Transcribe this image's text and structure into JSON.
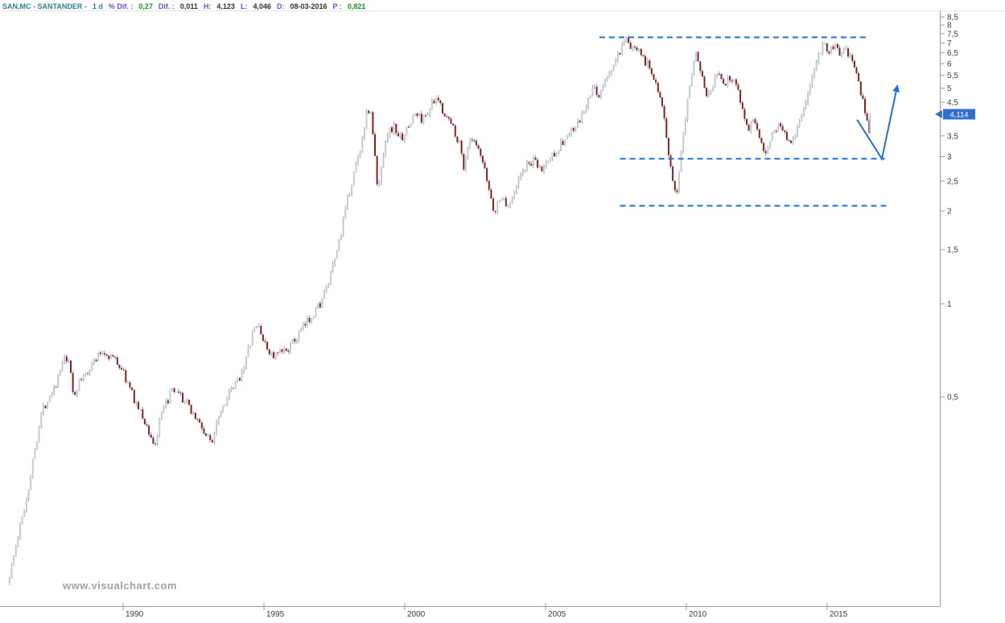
{
  "watermark": {
    "text": "www.visualchart.com"
  },
  "header": {
    "segments": [
      {
        "text": "SAN,MC - SANTANDER -",
        "color": "#2f7f96"
      },
      {
        "text": "1 d",
        "color": "#2f7f96"
      },
      {
        "text": "% Dif. :",
        "color": "#5a5ad6"
      },
      {
        "text": "0,27",
        "color": "#169616"
      },
      {
        "text": "Dif. :",
        "color": "#5a5ad6"
      },
      {
        "text": "0,011",
        "color": "#303030"
      },
      {
        "text": "H:",
        "color": "#5a5ad6"
      },
      {
        "text": "4,123",
        "color": "#303030"
      },
      {
        "text": "L:",
        "color": "#5a5ad6"
      },
      {
        "text": "4,046",
        "color": "#303030"
      },
      {
        "text": "D:",
        "color": "#5a5ad6"
      },
      {
        "text": "08-03-2016",
        "color": "#303030"
      },
      {
        "text": "P :",
        "color": "#5a5ad6"
      },
      {
        "text": "0,821",
        "color": "#169616"
      }
    ]
  },
  "chart_data": {
    "type": "candlestick",
    "instrument": "SAN,MC - SANTANDER",
    "timeframe": "1 d",
    "date_of_last_bar": "08-03-2016",
    "last_price": 4.114,
    "last_price_label": "4,114",
    "quote": {
      "pct_change": "0,27",
      "change": "0,011",
      "high": "4,123",
      "low": "4,046",
      "p": "0,821"
    },
    "y_axis": {
      "scale": "log",
      "ticks": [
        8.5,
        8,
        7.5,
        7,
        6.5,
        6,
        5.5,
        5,
        4.5,
        3.5,
        3,
        2.5,
        2,
        1.5,
        1,
        0.5
      ],
      "label_format": "comma-decimal"
    },
    "x_axis": {
      "ticks": [
        1990,
        1995,
        2000,
        2005,
        2010,
        2015
      ],
      "range_years": [
        1985.5,
        2018.6
      ]
    },
    "up_color": "#c2cccc",
    "down_color": "#8a1f1f",
    "wick_color": "#90a0a0",
    "annotation_color": "#1f6fe0",
    "badge_color": "#2e6fd0",
    "levels": [
      {
        "name": "resistance-line",
        "price": 7.3,
        "from_year": 2006.57,
        "to_year": 2016.14
      },
      {
        "name": "support-line-upper",
        "price": 2.95,
        "from_year": 2007.3,
        "to_year": 2016.7
      },
      {
        "name": "support-line-lower",
        "price": 2.08,
        "from_year": 2007.3,
        "to_year": 2016.85
      }
    ],
    "projection_arrow": {
      "points": [
        [
          2015.72,
          3.95
        ],
        [
          2016.6,
          2.95
        ],
        [
          2017.15,
          5.1
        ]
      ]
    },
    "series_anchors": [
      [
        1985.55,
        0.125
      ],
      [
        1985.8,
        0.155
      ],
      [
        1986.0,
        0.19
      ],
      [
        1986.25,
        0.24
      ],
      [
        1986.5,
        0.33
      ],
      [
        1986.75,
        0.44
      ],
      [
        1987.0,
        0.5
      ],
      [
        1987.3,
        0.56
      ],
      [
        1987.6,
        0.67
      ],
      [
        1987.78,
        0.62
      ],
      [
        1987.9,
        0.5
      ],
      [
        1988.1,
        0.555
      ],
      [
        1988.5,
        0.63
      ],
      [
        1988.9,
        0.7
      ],
      [
        1989.3,
        0.67
      ],
      [
        1989.6,
        0.62
      ],
      [
        1989.9,
        0.53
      ],
      [
        1990.2,
        0.46
      ],
      [
        1990.5,
        0.4
      ],
      [
        1990.78,
        0.345
      ],
      [
        1991.0,
        0.43
      ],
      [
        1991.35,
        0.52
      ],
      [
        1991.7,
        0.5
      ],
      [
        1992.0,
        0.465
      ],
      [
        1992.3,
        0.42
      ],
      [
        1992.6,
        0.375
      ],
      [
        1992.8,
        0.355
      ],
      [
        1993.0,
        0.43
      ],
      [
        1993.3,
        0.49
      ],
      [
        1993.7,
        0.555
      ],
      [
        1994.0,
        0.65
      ],
      [
        1994.25,
        0.8
      ],
      [
        1994.45,
        0.86
      ],
      [
        1994.7,
        0.73
      ],
      [
        1995.0,
        0.675
      ],
      [
        1995.35,
        0.7
      ],
      [
        1995.7,
        0.75
      ],
      [
        1996.0,
        0.82
      ],
      [
        1996.35,
        0.92
      ],
      [
        1996.7,
        1.02
      ],
      [
        1997.0,
        1.2
      ],
      [
        1997.3,
        1.55
      ],
      [
        1997.6,
        2.1
      ],
      [
        1997.85,
        2.65
      ],
      [
        1998.05,
        3.1
      ],
      [
        1998.3,
        4.1
      ],
      [
        1998.42,
        4.35
      ],
      [
        1998.55,
        3.4
      ],
      [
        1998.7,
        2.25
      ],
      [
        1998.85,
        2.9
      ],
      [
        1999.0,
        3.55
      ],
      [
        1999.25,
        3.75
      ],
      [
        1999.5,
        3.45
      ],
      [
        1999.75,
        3.65
      ],
      [
        2000.0,
        4.15
      ],
      [
        2000.3,
        3.95
      ],
      [
        2000.6,
        4.4
      ],
      [
        2000.85,
        4.55
      ],
      [
        2001.1,
        4.1
      ],
      [
        2001.4,
        3.7
      ],
      [
        2001.6,
        3.3
      ],
      [
        2001.75,
        2.8
      ],
      [
        2001.95,
        3.35
      ],
      [
        2002.15,
        3.3
      ],
      [
        2002.4,
        2.9
      ],
      [
        2002.65,
        2.35
      ],
      [
        2002.85,
        1.95
      ],
      [
        2003.05,
        2.25
      ],
      [
        2003.3,
        2.05
      ],
      [
        2003.6,
        2.4
      ],
      [
        2003.9,
        2.75
      ],
      [
        2004.2,
        2.9
      ],
      [
        2004.5,
        2.7
      ],
      [
        2004.8,
        2.95
      ],
      [
        2005.1,
        3.2
      ],
      [
        2005.45,
        3.5
      ],
      [
        2005.8,
        3.8
      ],
      [
        2006.1,
        4.35
      ],
      [
        2006.35,
        5.0
      ],
      [
        2006.55,
        4.75
      ],
      [
        2006.8,
        5.3
      ],
      [
        2007.1,
        6.0
      ],
      [
        2007.35,
        6.65
      ],
      [
        2007.55,
        7.15
      ],
      [
        2007.75,
        6.6
      ],
      [
        2007.95,
        6.95
      ],
      [
        2008.15,
        6.2
      ],
      [
        2008.4,
        5.7
      ],
      [
        2008.6,
        5.2
      ],
      [
        2008.8,
        4.5
      ],
      [
        2009.0,
        3.1
      ],
      [
        2009.2,
        2.35
      ],
      [
        2009.3,
        2.2
      ],
      [
        2009.5,
        3.4
      ],
      [
        2009.7,
        4.6
      ],
      [
        2009.9,
        6.2
      ],
      [
        2010.05,
        6.4
      ],
      [
        2010.2,
        5.6
      ],
      [
        2010.4,
        4.75
      ],
      [
        2010.6,
        5.2
      ],
      [
        2010.8,
        5.65
      ],
      [
        2011.0,
        5.1
      ],
      [
        2011.2,
        5.45
      ],
      [
        2011.45,
        5.15
      ],
      [
        2011.65,
        4.3
      ],
      [
        2011.85,
        3.7
      ],
      [
        2012.0,
        3.95
      ],
      [
        2012.2,
        3.5
      ],
      [
        2012.45,
        3.1
      ],
      [
        2012.65,
        3.45
      ],
      [
        2012.9,
        3.8
      ],
      [
        2013.1,
        3.65
      ],
      [
        2013.35,
        3.35
      ],
      [
        2013.6,
        3.7
      ],
      [
        2013.85,
        4.4
      ],
      [
        2014.1,
        5.2
      ],
      [
        2014.35,
        6.5
      ],
      [
        2014.55,
        7.0
      ],
      [
        2014.75,
        6.55
      ],
      [
        2014.95,
        6.85
      ],
      [
        2015.15,
        6.4
      ],
      [
        2015.35,
        6.6
      ],
      [
        2015.55,
        6.05
      ],
      [
        2015.75,
        5.3
      ],
      [
        2015.95,
        4.4
      ],
      [
        2016.08,
        3.85
      ],
      [
        2016.14,
        3.5
      ],
      [
        2016.18,
        4.114
      ]
    ]
  }
}
